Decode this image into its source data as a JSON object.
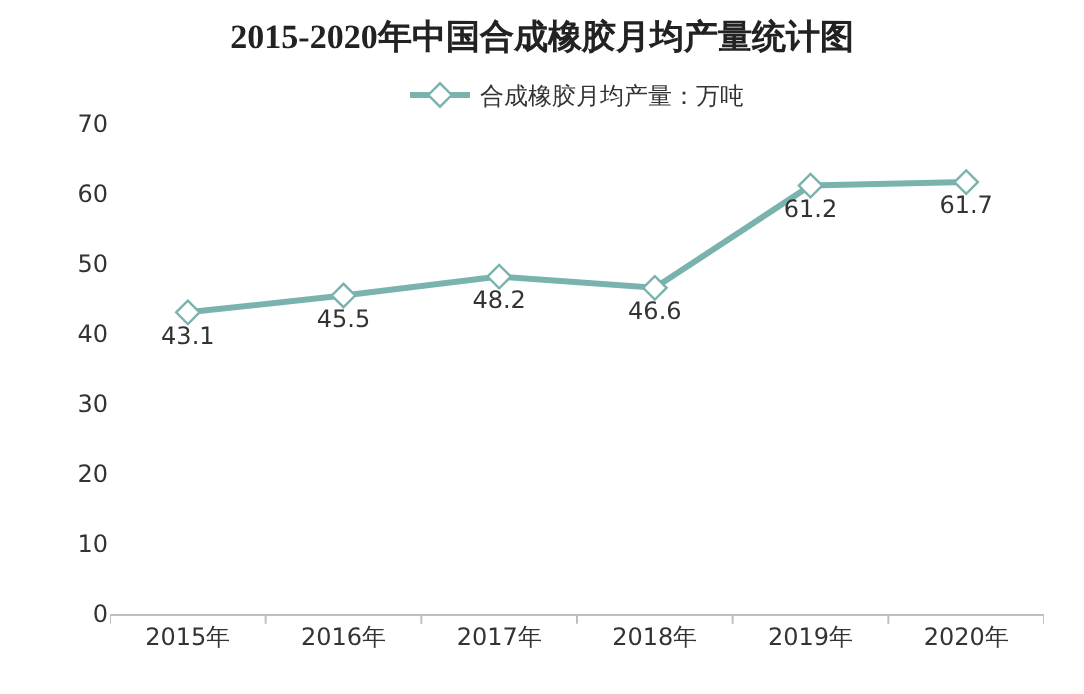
{
  "chart_data": {
    "type": "line",
    "title": "2015-2020年中国合成橡胶月均产量统计图",
    "categories": [
      "2015年",
      "2016年",
      "2017年",
      "2018年",
      "2019年",
      "2020年"
    ],
    "series": [
      {
        "name": "合成橡胶月均产量：万吨",
        "color": "#7ab3ae",
        "values": [
          43.1,
          45.5,
          48.2,
          46.6,
          61.2,
          61.7
        ]
      }
    ],
    "ylim": [
      0,
      70
    ],
    "yticks": [
      0,
      10,
      20,
      30,
      40,
      50,
      60,
      70
    ],
    "marker": "diamond",
    "line_style": "solid",
    "data_labels": true,
    "legend": "top"
  }
}
